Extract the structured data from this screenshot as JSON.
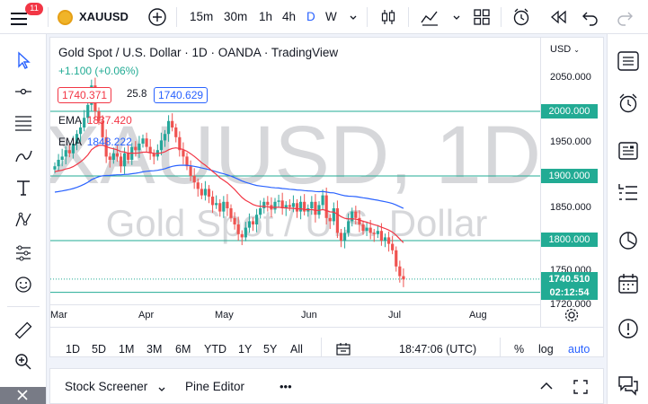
{
  "toolbar": {
    "notification_count": "11",
    "symbol": "XAUUSD",
    "intervals": [
      "15m",
      "30m",
      "1h",
      "4h",
      "D",
      "W"
    ],
    "active_interval": "D"
  },
  "chart": {
    "title": "Gold Spot / U.S. Dollar · 1D · OANDA · TradingView",
    "change": "+1.100 (+0.06%)",
    "bid": "1740.371",
    "spread": "25.8",
    "ask": "1740.629",
    "ema1_label": "EMA",
    "ema1_value": "1837.420",
    "ema2_label": "EMA",
    "ema2_value": "1848.222",
    "currency": "USD",
    "watermark_symbol": "XAUUSD, 1D",
    "watermark_name": "Gold Spot / U.S. Dollar",
    "price_axis": [
      "2050.000",
      "1950.000",
      "1850.000",
      "1750.000",
      "1720.000"
    ],
    "level_labels": [
      "2000.000",
      "1900.000",
      "1800.000"
    ],
    "current_price": "1740.510",
    "countdown": "02:12:54",
    "time_axis": [
      "Mar",
      "Apr",
      "May",
      "Jun",
      "Jul",
      "Aug"
    ],
    "colors": {
      "up": "#26a69a",
      "down": "#ef5350",
      "ema_fast": "#f23645",
      "ema_slow": "#2962ff",
      "level": "#22ab94"
    }
  },
  "bottom_bar": {
    "ranges": [
      "1D",
      "5D",
      "1M",
      "3M",
      "6M",
      "YTD",
      "1Y",
      "5Y",
      "All"
    ],
    "clock": "18:47:06 (UTC)",
    "percent_label": "%",
    "log_label": "log",
    "auto_label": "auto"
  },
  "panel": {
    "stock_screener": "Stock Screener",
    "pine_editor": "Pine Editor",
    "more": "•••"
  }
}
